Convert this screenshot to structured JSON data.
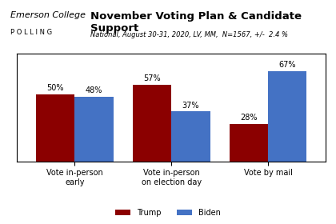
{
  "chart_data": {
    "type": "bar",
    "title": "November Voting Plan & Candidate Support",
    "subtitle": "National, August 30-31, 2020, LV, MM,  N=1567, +/-  2.4 %",
    "annotations": [
      "Emerson College",
      "P O L L I N G"
    ],
    "categories": [
      "Vote in-person early",
      "Vote in-person on election day",
      "Vote by mail"
    ],
    "series": [
      {
        "name": "Trump",
        "color": "#8B0000",
        "values": [
          50,
          57,
          28
        ],
        "value_labels": [
          "50%",
          "57%",
          "28%"
        ]
      },
      {
        "name": "Biden",
        "color": "#4472C4",
        "values": [
          48,
          37,
          67
        ],
        "value_labels": [
          "48%",
          "37%",
          "67%"
        ]
      }
    ],
    "ylim": [
      0,
      80
    ],
    "yticks": [],
    "data_labels": true,
    "tick_labels": "x",
    "legend": "lower center"
  }
}
